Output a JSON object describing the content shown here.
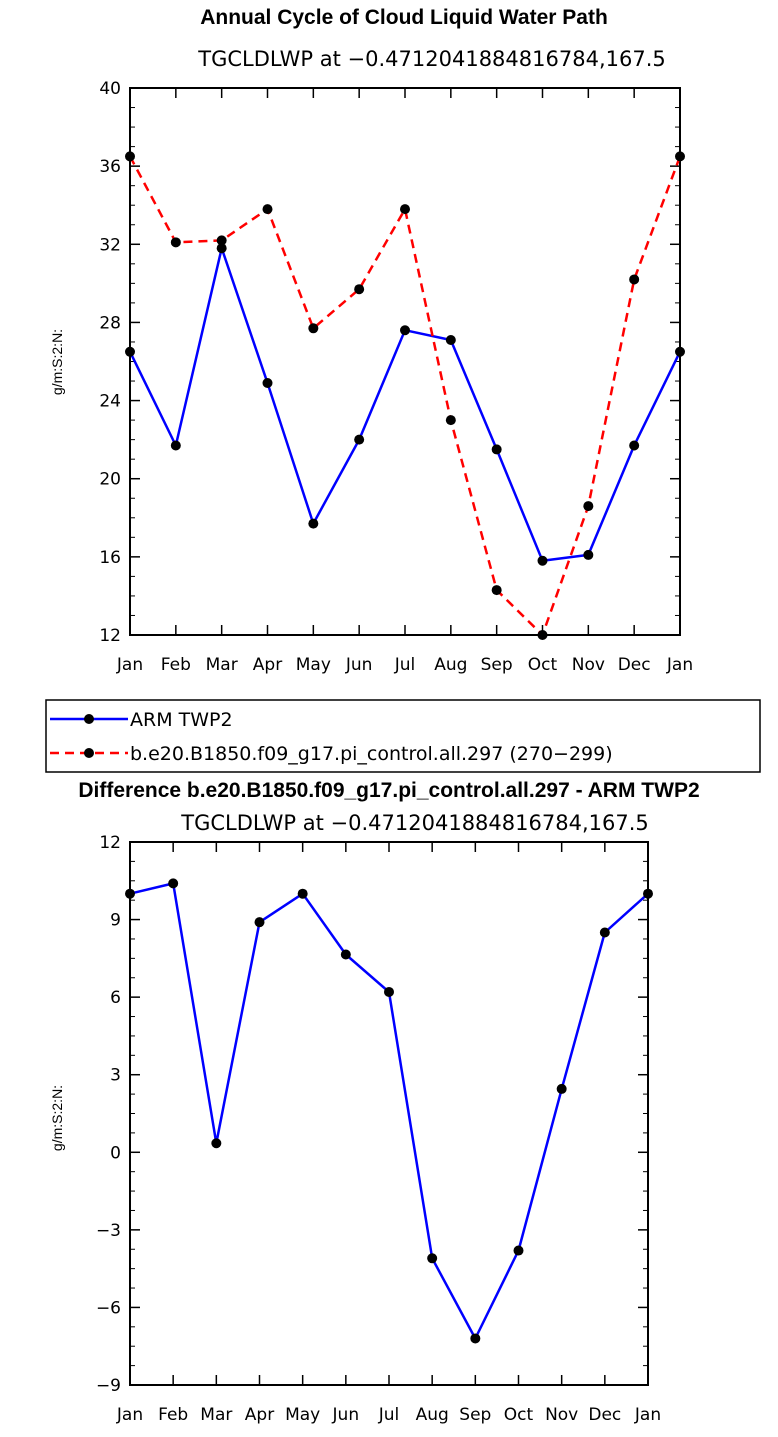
{
  "chart_data": [
    {
      "type": "line",
      "title": "Annual Cycle of Cloud Liquid Water Path",
      "subtitle": "TGCLDLWP at −0.4712041884816784,167.5",
      "xlabel": "",
      "ylabel": "g/m:S:2:N:",
      "categories": [
        "Jan",
        "Feb",
        "Mar",
        "Apr",
        "May",
        "Jun",
        "Jul",
        "Aug",
        "Sep",
        "Oct",
        "Nov",
        "Dec",
        "Jan"
      ],
      "ylim": [
        12,
        40
      ],
      "yticks": [
        12,
        16,
        20,
        24,
        28,
        32,
        36,
        40
      ],
      "ytick_labels": [
        "12",
        "16",
        "20",
        "24",
        "28",
        "32",
        "36",
        "40"
      ],
      "legend_position": "bottom",
      "series": [
        {
          "name": "ARM TWP2",
          "color": "#0000ff",
          "dash": "solid",
          "values": [
            26.5,
            21.7,
            31.8,
            24.9,
            17.7,
            22.0,
            27.6,
            27.1,
            21.5,
            15.8,
            16.1,
            21.7,
            26.5
          ]
        },
        {
          "name": "b.e20.B1850.f09_g17.pi_control.all.297 (270−299)",
          "color": "#ff0000",
          "dash": "dashed",
          "values": [
            36.5,
            32.1,
            32.2,
            33.8,
            27.7,
            29.7,
            33.8,
            23.0,
            14.3,
            12.0,
            18.6,
            30.2,
            36.5
          ]
        }
      ]
    },
    {
      "type": "line",
      "title": "Difference b.e20.B1850.f09_g17.pi_control.all.297 - ARM TWP2",
      "subtitle": "TGCLDLWP at −0.4712041884816784,167.5",
      "xlabel": "",
      "ylabel": "g/m:S:2:N:",
      "categories": [
        "Jan",
        "Feb",
        "Mar",
        "Apr",
        "May",
        "Jun",
        "Jul",
        "Aug",
        "Sep",
        "Oct",
        "Nov",
        "Dec",
        "Jan"
      ],
      "ylim": [
        -9,
        12
      ],
      "yticks": [
        -9,
        -6,
        -3,
        0,
        3,
        6,
        9,
        12
      ],
      "ytick_labels": [
        "−9",
        "−6",
        "−3",
        "0",
        "3",
        "6",
        "9",
        "12"
      ],
      "series": [
        {
          "name": "Difference",
          "color": "#0000ff",
          "dash": "solid",
          "values": [
            10.0,
            10.4,
            0.35,
            8.9,
            10.0,
            7.65,
            6.2,
            -4.1,
            -7.2,
            -3.8,
            2.45,
            8.5,
            10.0
          ]
        }
      ]
    }
  ]
}
